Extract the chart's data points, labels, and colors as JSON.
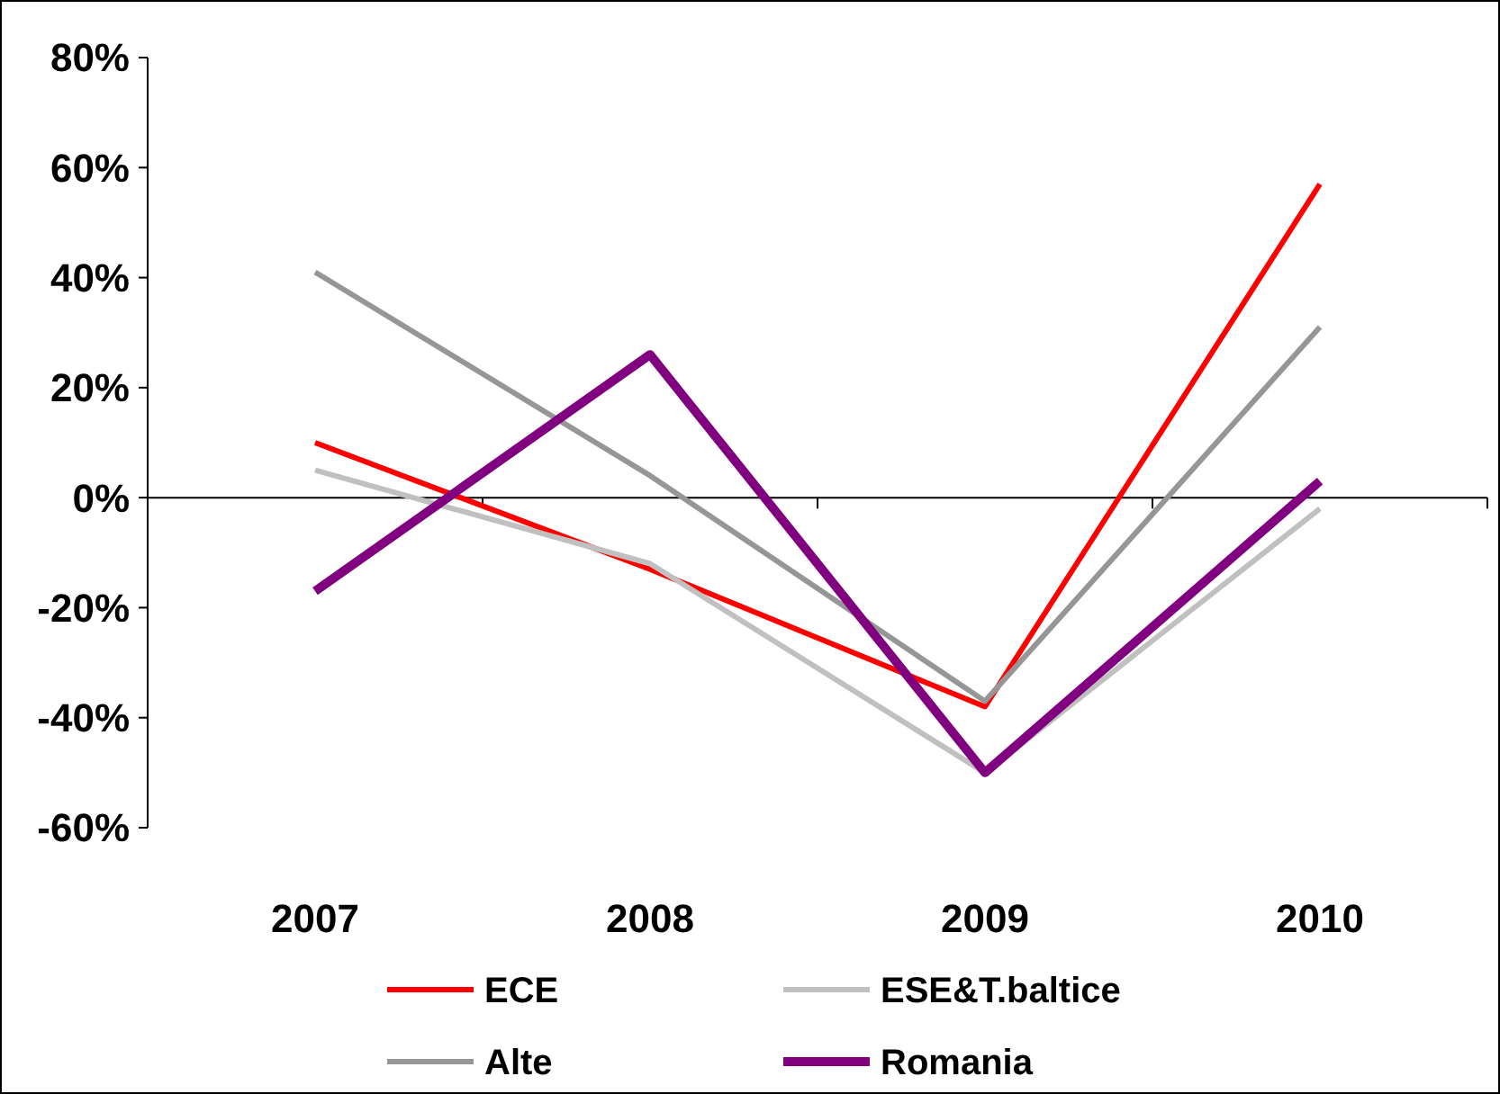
{
  "chart_data": {
    "type": "line",
    "categories": [
      "2007",
      "2008",
      "2009",
      "2010"
    ],
    "series": [
      {
        "name": "ECE",
        "color": "#ff0000",
        "values": [
          10,
          -13,
          -38,
          57
        ]
      },
      {
        "name": "ESE&T.baltice",
        "color": "#c0c0c0",
        "values": [
          5,
          -12,
          -50,
          -2
        ]
      },
      {
        "name": "Alte",
        "color": "#969696",
        "values": [
          41,
          4,
          -37,
          31
        ]
      },
      {
        "name": "Romania",
        "color": "#800080",
        "values": [
          -17,
          26,
          -50,
          3
        ]
      }
    ],
    "ylim": [
      -60,
      80
    ],
    "yticks": [
      {
        "value": -60,
        "label": "-60%"
      },
      {
        "value": -40,
        "label": "-40%"
      },
      {
        "value": -20,
        "label": "-20%"
      },
      {
        "value": 0,
        "label": "0%"
      },
      {
        "value": 20,
        "label": "20%"
      },
      {
        "value": 40,
        "label": "40%"
      },
      {
        "value": 60,
        "label": "60%"
      },
      {
        "value": 80,
        "label": "80%"
      }
    ],
    "legend": "bottom",
    "line_style": "solid"
  }
}
